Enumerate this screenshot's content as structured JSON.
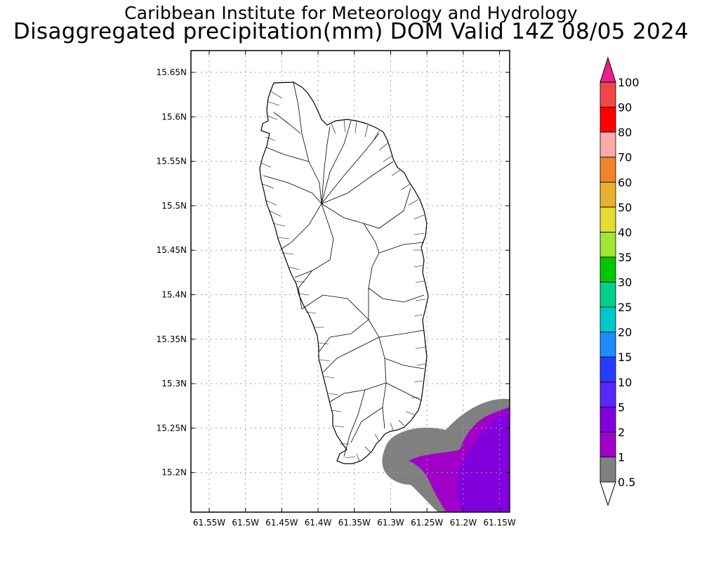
{
  "header": {
    "title": "Caribbean Institute for Meteorology and Hydrology",
    "subtitle": "Disaggregated precipitation(mm) DOM Valid 14Z 08/05 2024"
  },
  "map": {
    "lat_ticks": [
      "15.65N",
      "15.6N",
      "15.55N",
      "15.5N",
      "15.45N",
      "15.4N",
      "15.35N",
      "15.3N",
      "15.25N",
      "15.2N"
    ],
    "lon_ticks": [
      "61.55W",
      "61.5W",
      "61.45W",
      "61.4W",
      "61.35W",
      "61.3W",
      "61.25W",
      "61.2W",
      "61.15W"
    ],
    "colors": {
      "frame": "#000000",
      "grid": "#9a9a9a",
      "coast": "#000000"
    }
  },
  "colorbar": {
    "levels": [
      "0.5",
      "1",
      "2",
      "5",
      "10",
      "15",
      "20",
      "25",
      "30",
      "35",
      "40",
      "50",
      "60",
      "70",
      "80",
      "90",
      "100"
    ],
    "colors": [
      "#ffffff",
      "#808080",
      "#a000c8",
      "#8200dc",
      "#5a28ff",
      "#283cff",
      "#1e8cff",
      "#00c8c8",
      "#00d28c",
      "#00c800",
      "#a0e632",
      "#e6dc32",
      "#e6af2d",
      "#f08228",
      "#faaaaa",
      "#ff0000",
      "#f04646",
      "#f01e8c"
    ]
  }
}
